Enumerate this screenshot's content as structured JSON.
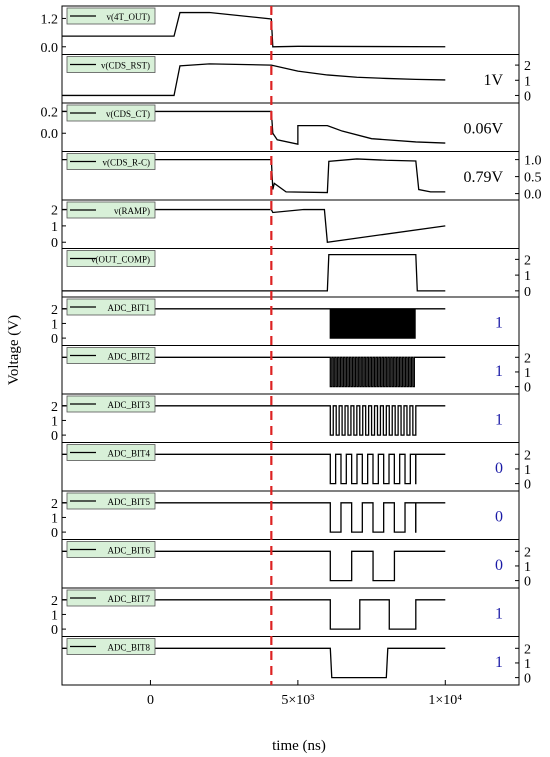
{
  "chart_data": {
    "type": "line",
    "xlabel": "time (ns)",
    "ylabel": "Voltage (V)",
    "x_range": [
      -3000,
      12500
    ],
    "x_ticks": [
      {
        "value": 0,
        "label": "0"
      },
      {
        "value": 5000,
        "label": "5×10³"
      },
      {
        "value": 10000,
        "label": "1×10⁴"
      }
    ],
    "marker_x": 4100,
    "marker_color": "#dd2222",
    "legend_fill": "#d8f0d8",
    "annotation_color_result": "#1a1aa6",
    "panels": [
      {
        "name": "v(4T_OUT)",
        "axis": "left",
        "ylim": [
          -0.2,
          1.6
        ],
        "ticks": [
          {
            "v": 1.2,
            "label": "1.2"
          },
          {
            "v": 0.0,
            "label": "0.0"
          }
        ],
        "points": [
          [
            -3000,
            0.45
          ],
          [
            0,
            0.45
          ],
          [
            800,
            0.45
          ],
          [
            1000,
            1.45
          ],
          [
            2000,
            1.45
          ],
          [
            4100,
            1.18
          ],
          [
            4150,
            0.0
          ],
          [
            5000,
            0.02
          ],
          [
            10000,
            0.0
          ]
        ],
        "annotation": ""
      },
      {
        "name": "v(CDS_RST)",
        "axis": "right",
        "ylim": [
          -0.3,
          2.5
        ],
        "ticks": [
          {
            "v": 2,
            "label": "2"
          },
          {
            "v": 1,
            "label": "1"
          },
          {
            "v": 0,
            "label": "0"
          }
        ],
        "points": [
          [
            -3000,
            0
          ],
          [
            800,
            0
          ],
          [
            1000,
            1.95
          ],
          [
            2000,
            2.08
          ],
          [
            4100,
            2.0
          ],
          [
            5000,
            1.6
          ],
          [
            6000,
            1.35
          ],
          [
            7000,
            1.2
          ],
          [
            8000,
            1.12
          ],
          [
            9000,
            1.06
          ],
          [
            10000,
            1.02
          ]
        ],
        "annotation": "1V"
      },
      {
        "name": "v(CDS_CT)",
        "axis": "left",
        "ylim": [
          -0.14,
          0.25
        ],
        "ticks": [
          {
            "v": 0.2,
            "label": "0.2"
          },
          {
            "v": 0.0,
            "label": "0.0"
          }
        ],
        "points": [
          [
            -3000,
            0.2
          ],
          [
            4100,
            0.2
          ],
          [
            4150,
            0.0
          ],
          [
            4300,
            -0.06
          ],
          [
            5000,
            -0.1
          ],
          [
            5000,
            0.07
          ],
          [
            6000,
            0.07
          ],
          [
            6500,
            0.02
          ],
          [
            7500,
            -0.05
          ],
          [
            9000,
            -0.08
          ],
          [
            10000,
            -0.09
          ]
        ],
        "annotation": "0.06V"
      },
      {
        "name": "v(CDS_R-C)",
        "axis": "right",
        "ylim": [
          -0.1,
          1.15
        ],
        "ticks": [
          {
            "v": 1.0,
            "label": "1.0"
          },
          {
            "v": 0.5,
            "label": "0.5"
          },
          {
            "v": 0.0,
            "label": "0.0"
          }
        ],
        "points": [
          [
            -3000,
            1.0
          ],
          [
            4100,
            1.0
          ],
          [
            4150,
            0.12
          ],
          [
            4200,
            0.3
          ],
          [
            4600,
            0.05
          ],
          [
            6000,
            0.03
          ],
          [
            6050,
            0.95
          ],
          [
            7000,
            1.02
          ],
          [
            8000,
            0.98
          ],
          [
            9000,
            0.96
          ],
          [
            9100,
            0.12
          ],
          [
            9500,
            0.05
          ],
          [
            10000,
            0.05
          ]
        ],
        "annotation": "0.79V"
      },
      {
        "name": "v(RAMP)",
        "axis": "left",
        "ylim": [
          -0.2,
          2.4
        ],
        "ticks": [
          {
            "v": 2,
            "label": "2"
          },
          {
            "v": 1,
            "label": "1"
          },
          {
            "v": 0,
            "label": "0"
          }
        ],
        "points": [
          [
            -3000,
            2.0
          ],
          [
            4100,
            2.0
          ],
          [
            4150,
            1.82
          ],
          [
            5200,
            2.0
          ],
          [
            5900,
            2.0
          ],
          [
            6000,
            0.0
          ],
          [
            10000,
            1.0
          ]
        ],
        "annotation": ""
      },
      {
        "name": "v(OUT_COMP)",
        "axis": "right",
        "ylim": [
          -0.2,
          2.5
        ],
        "ticks": [
          {
            "v": 2,
            "label": "2"
          },
          {
            "v": 1,
            "label": "1"
          },
          {
            "v": 0,
            "label": "0"
          }
        ],
        "points": [
          [
            -3000,
            0
          ],
          [
            6000,
            0
          ],
          [
            6050,
            2.3
          ],
          [
            9000,
            2.3
          ],
          [
            9050,
            0
          ],
          [
            10000,
            0
          ]
        ],
        "annotation": ""
      },
      {
        "name": "ADC_BIT1",
        "axis": "left",
        "ylim": [
          -0.3,
          2.6
        ],
        "ticks": [
          {
            "v": 2,
            "label": "2"
          },
          {
            "v": 1,
            "label": "1"
          },
          {
            "v": 0,
            "label": "0"
          }
        ],
        "toggle": {
          "start": 6100,
          "end": 9000,
          "half_period": 25
        },
        "annotation": "1"
      },
      {
        "name": "ADC_BIT2",
        "axis": "right",
        "ylim": [
          -0.3,
          2.6
        ],
        "ticks": [
          {
            "v": 2,
            "label": "2"
          },
          {
            "v": 1,
            "label": "1"
          },
          {
            "v": 0,
            "label": "0"
          }
        ],
        "toggle": {
          "start": 6100,
          "end": 9000,
          "half_period": 50
        },
        "annotation": "1"
      },
      {
        "name": "ADC_BIT3",
        "axis": "left",
        "ylim": [
          -0.3,
          2.6
        ],
        "ticks": [
          {
            "v": 2,
            "label": "2"
          },
          {
            "v": 1,
            "label": "1"
          },
          {
            "v": 0,
            "label": "0"
          }
        ],
        "toggle": {
          "start": 6100,
          "end": 9000,
          "half_period": 100
        },
        "annotation": "1"
      },
      {
        "name": "ADC_BIT4",
        "axis": "right",
        "ylim": [
          -0.3,
          2.6
        ],
        "ticks": [
          {
            "v": 2,
            "label": "2"
          },
          {
            "v": 1,
            "label": "1"
          },
          {
            "v": 0,
            "label": "0"
          }
        ],
        "toggle": {
          "start": 6100,
          "end": 9000,
          "half_period": 181
        },
        "annotation": "0"
      },
      {
        "name": "ADC_BIT5",
        "axis": "left",
        "ylim": [
          -0.3,
          2.6
        ],
        "ticks": [
          {
            "v": 2,
            "label": "2"
          },
          {
            "v": 1,
            "label": "1"
          },
          {
            "v": 0,
            "label": "0"
          }
        ],
        "toggle": {
          "start": 6100,
          "end": 9000,
          "half_period": 362
        },
        "annotation": "0"
      },
      {
        "name": "ADC_BIT6",
        "axis": "right",
        "ylim": [
          -0.3,
          2.6
        ],
        "ticks": [
          {
            "v": 2,
            "label": "2"
          },
          {
            "v": 1,
            "label": "1"
          },
          {
            "v": 0,
            "label": "0"
          }
        ],
        "toggle": {
          "start": 6100,
          "end": 9000,
          "half_period": 725
        },
        "annotation": "0"
      },
      {
        "name": "ADC_BIT7",
        "axis": "left",
        "ylim": [
          -0.3,
          2.6
        ],
        "ticks": [
          {
            "v": 2,
            "label": "2"
          },
          {
            "v": 1,
            "label": "1"
          },
          {
            "v": 0,
            "label": "0"
          }
        ],
        "toggle": {
          "start": 6100,
          "end": 9000,
          "half_period": 1000
        },
        "annotation": "1"
      },
      {
        "name": "ADC_BIT8",
        "axis": "right",
        "ylim": [
          -0.3,
          2.6
        ],
        "ticks": [
          {
            "v": 2,
            "label": "2"
          },
          {
            "v": 1,
            "label": "1"
          },
          {
            "v": 0,
            "label": "0"
          }
        ],
        "points": [
          [
            -3000,
            2
          ],
          [
            6100,
            2
          ],
          [
            6150,
            0
          ],
          [
            8000,
            0
          ],
          [
            8050,
            2
          ],
          [
            10000,
            2
          ]
        ],
        "annotation": "1"
      }
    ]
  }
}
